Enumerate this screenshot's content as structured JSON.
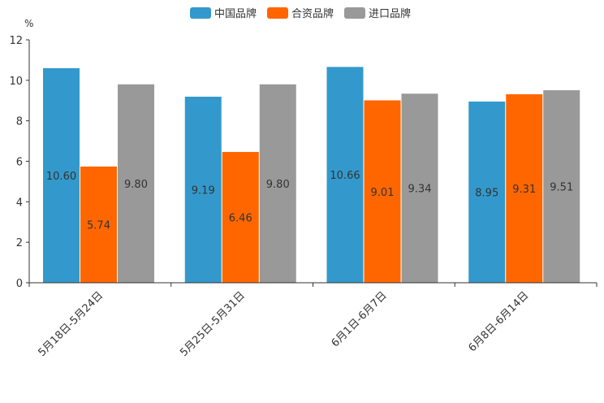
{
  "chart_data": {
    "type": "bar",
    "unit": "%",
    "categories": [
      "5月18日-5月24日",
      "5月25日-5月31日",
      "6月1日-6月7日",
      "6月8日-6月14日"
    ],
    "series": [
      {
        "name": "中国品牌",
        "color": "#3399cc",
        "values": [
          10.6,
          9.19,
          10.66,
          8.95
        ],
        "labels": [
          "10.60",
          "9.19",
          "10.66",
          "8.95"
        ]
      },
      {
        "name": "合资品牌",
        "color": "#ff6600",
        "values": [
          5.74,
          6.46,
          9.01,
          9.31
        ],
        "labels": [
          "5.74",
          "6.46",
          "9.01",
          "9.31"
        ]
      },
      {
        "name": "进口品牌",
        "color": "#999999",
        "values": [
          9.8,
          9.8,
          9.34,
          9.51
        ],
        "labels": [
          "9.80",
          "9.80",
          "9.34",
          "9.51"
        ]
      }
    ],
    "yticks": [
      "0",
      "2",
      "4",
      "6",
      "8",
      "10",
      "12"
    ],
    "ylim": [
      0,
      12
    ],
    "legend_position": "top-center",
    "grid": false
  }
}
